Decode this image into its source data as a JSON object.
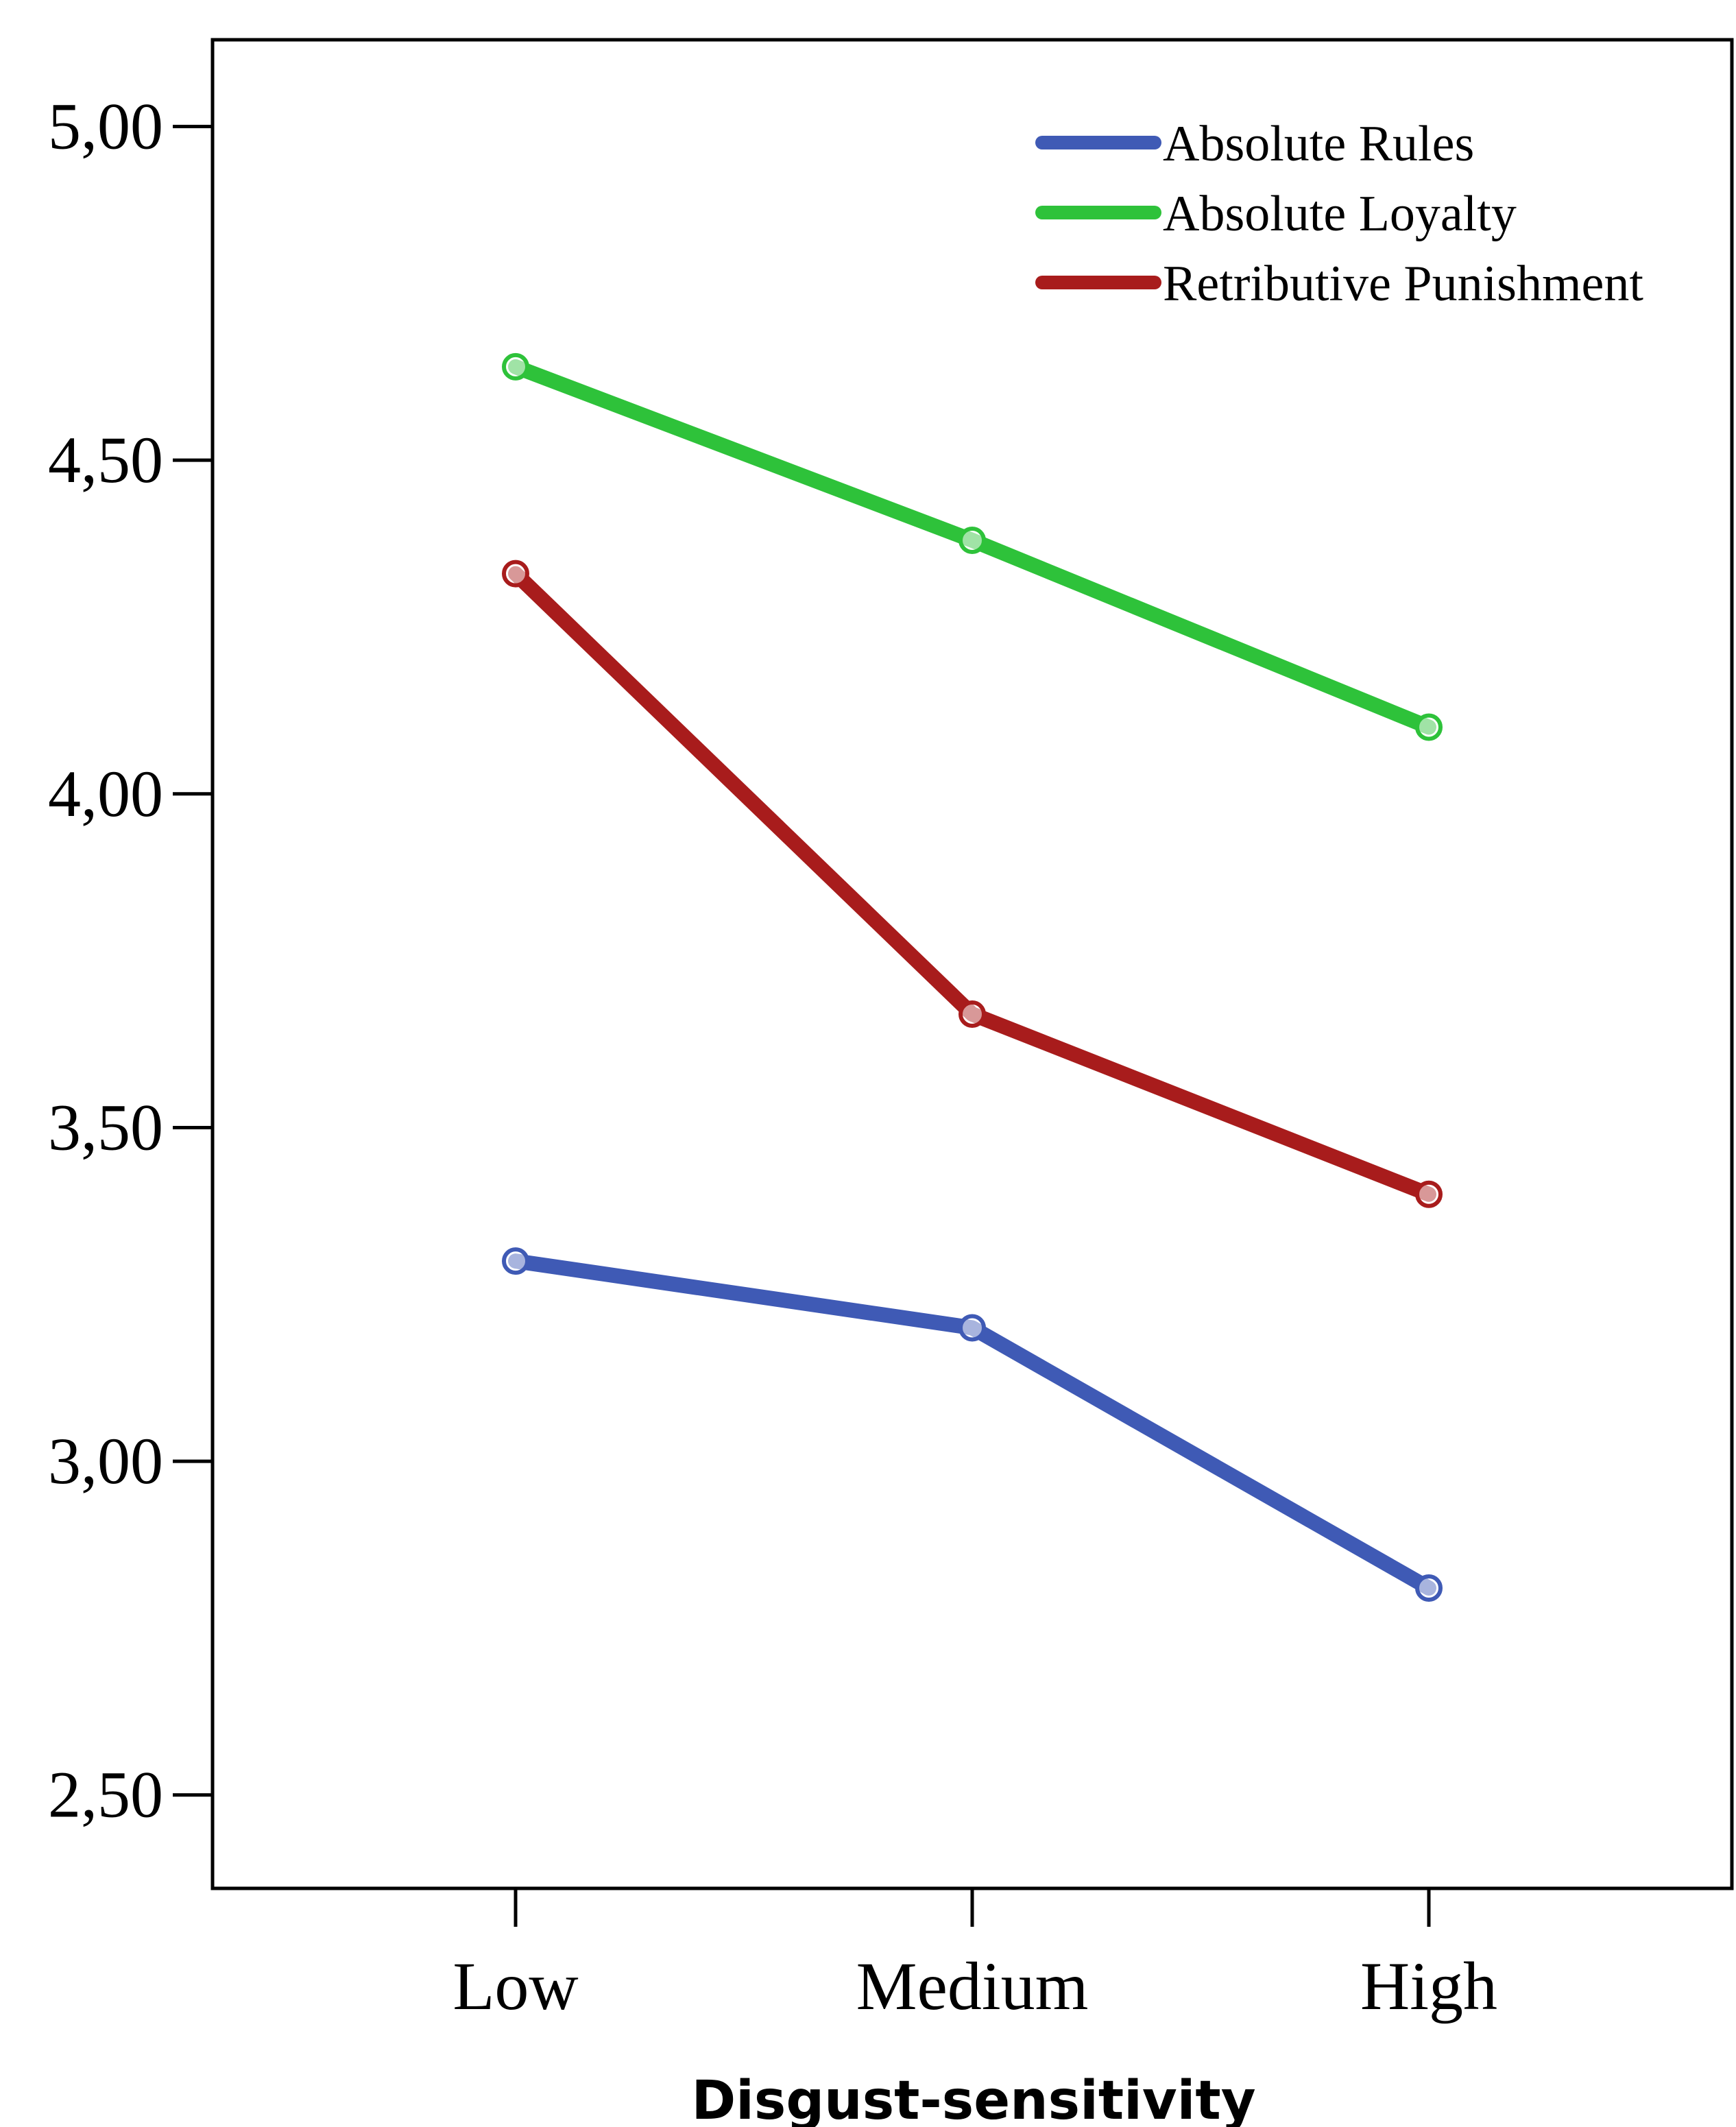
{
  "chart_data": {
    "type": "line",
    "categories": [
      "Low",
      "Medium",
      "High"
    ],
    "series": [
      {
        "name": "Absolute Rules",
        "color": "#3f5ab5",
        "values": [
          3.3,
          3.2,
          2.81
        ]
      },
      {
        "name": "Absolute Loyalty",
        "color": "#2ec23a",
        "values": [
          4.64,
          4.38,
          4.1
        ]
      },
      {
        "name": "Retributive Punishment",
        "color": "#a81c1c",
        "values": [
          4.33,
          3.67,
          3.4
        ]
      }
    ],
    "xlabel": "Disgust-sensitivity",
    "ylabel": "",
    "ylim": [
      2.36,
      5.13
    ],
    "yticks": [
      2.5,
      3.0,
      3.5,
      4.0,
      4.5,
      5.0
    ],
    "ytick_labels": [
      "2,50",
      "3,00",
      "3,50",
      "4,00",
      "4,50",
      "5,00"
    ],
    "grid": false,
    "legend_position": "top-right"
  }
}
